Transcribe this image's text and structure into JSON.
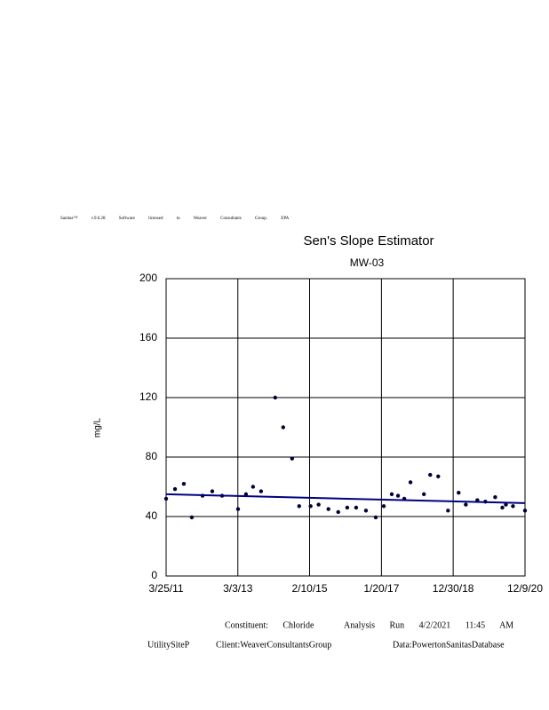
{
  "chart_data": {
    "type": "scatter",
    "header": "Sanitas™ v.9.6.28 Software licensed to Weaver Consultants Group. EPA",
    "title": "Sen's Slope Estimator",
    "subtitle": "MW-03",
    "y_label": "mg/L",
    "footer": [
      "Constituent: Chloride",
      "Analysis Run 4/2/2021 11:45 AM",
      "UtilitySiteP",
      "Client:WeaverConsultantsGroup",
      "Data:PowertonSanitasDatabase"
    ],
    "xlim": [
      "2011-03-25",
      "2020-12-09"
    ],
    "xticks": [
      {
        "value": "2011-03-25",
        "label": "3/25/11"
      },
      {
        "value": "2013-03-03",
        "label": "3/3/13"
      },
      {
        "value": "2015-02-10",
        "label": "2/10/15"
      },
      {
        "value": "2017-01-20",
        "label": "1/20/17"
      },
      {
        "value": "2018-12-30",
        "label": "12/30/18"
      },
      {
        "value": "2020-12-09",
        "label": "12/9/20"
      }
    ],
    "ylim": [
      0,
      200
    ],
    "yticks": [
      0,
      40,
      80,
      120,
      160,
      200
    ],
    "grid": true,
    "series": [
      {
        "color": "#000033",
        "x": [
          "2011-03-25",
          "2011-06-21",
          "2011-09-16",
          "2011-12-04",
          "2012-03-19",
          "2012-06-23",
          "2012-09-28",
          "2013-03-05",
          "2013-05-22",
          "2013-07-31",
          "2013-10-18",
          "2014-03-07",
          "2014-05-25",
          "2014-08-21",
          "2014-10-30",
          "2015-02-20",
          "2015-05-10",
          "2015-08-15",
          "2015-11-20",
          "2016-02-17",
          "2016-05-15",
          "2016-08-20",
          "2016-11-25",
          "2017-02-12",
          "2017-05-02",
          "2017-07-03",
          "2017-09-03",
          "2017-11-03",
          "2018-03-16",
          "2018-05-17",
          "2018-08-04",
          "2018-11-09",
          "2019-02-22",
          "2019-05-04",
          "2019-08-26",
          "2019-11-13",
          "2020-02-18",
          "2020-04-29",
          "2020-06-03",
          "2020-08-12",
          "2020-12-09"
        ],
        "values": [
          52,
          58.5,
          62,
          39.4,
          54,
          57,
          54,
          45,
          55,
          60,
          57,
          120,
          100,
          79,
          47,
          47,
          48,
          45,
          43,
          46,
          46,
          44,
          39.4,
          47,
          55,
          54,
          52,
          63,
          55,
          68,
          67,
          44,
          56,
          48,
          51,
          50,
          53,
          46,
          48,
          47,
          44
        ]
      }
    ],
    "trend": {
      "color": "#000080",
      "x": [
        "2011-03-25",
        "2020-12-09"
      ],
      "values": [
        55,
        49
      ]
    }
  }
}
